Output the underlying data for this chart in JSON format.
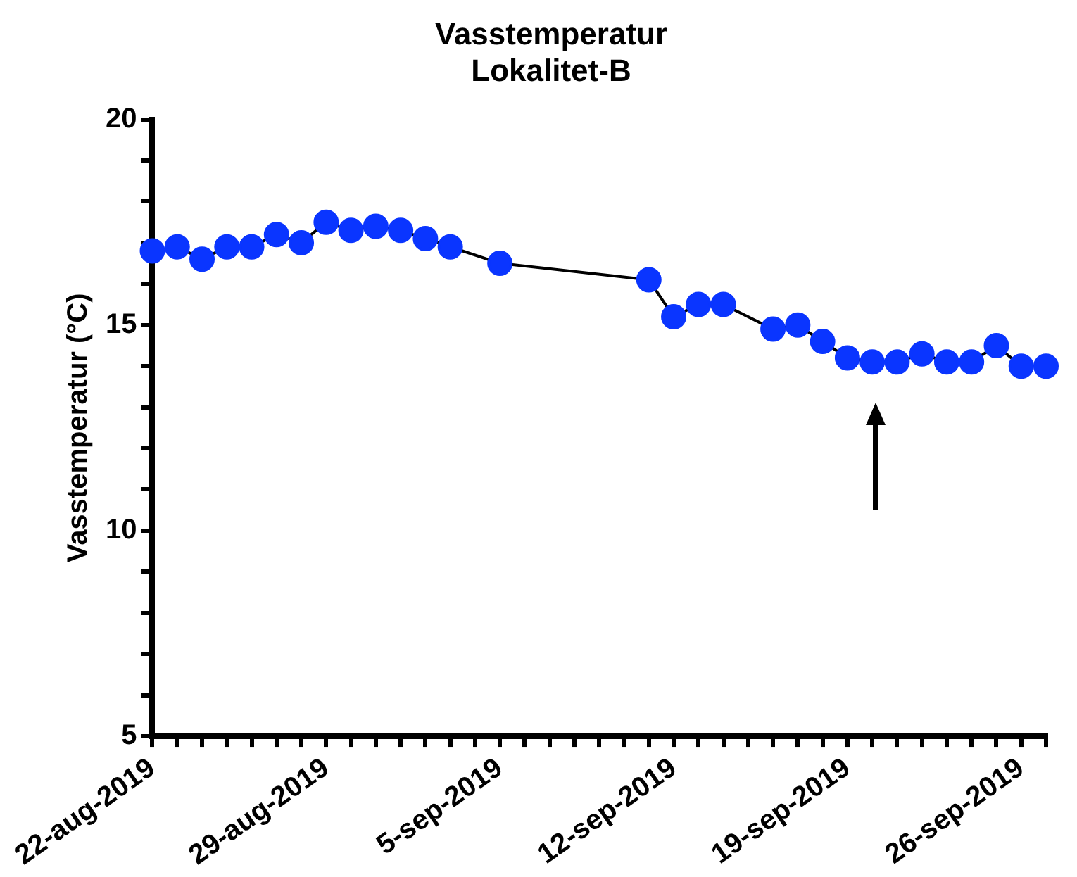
{
  "chart_data": {
    "type": "line",
    "title": "Vasstemperatur",
    "subtitle": "Lokalitet-B",
    "ylabel": "Vasstemperatur (°C)",
    "x": [
      "2019-08-22",
      "2019-08-23",
      "2019-08-24",
      "2019-08-25",
      "2019-08-26",
      "2019-08-27",
      "2019-08-28",
      "2019-08-29",
      "2019-08-30",
      "2019-08-31",
      "2019-09-01",
      "2019-09-02",
      "2019-09-03",
      "2019-09-05",
      "2019-09-11",
      "2019-09-12",
      "2019-09-13",
      "2019-09-14",
      "2019-09-16",
      "2019-09-17",
      "2019-09-18",
      "2019-09-19",
      "2019-09-20",
      "2019-09-21",
      "2019-09-22",
      "2019-09-23",
      "2019-09-24",
      "2019-09-25",
      "2019-09-26",
      "2019-09-27"
    ],
    "series": [
      {
        "color": "#0a35ff",
        "values": [
          16.8,
          16.9,
          16.6,
          16.9,
          16.9,
          17.2,
          17.0,
          17.5,
          17.3,
          17.4,
          17.3,
          17.1,
          16.9,
          16.5,
          16.1,
          15.2,
          15.5,
          15.5,
          14.9,
          15.0,
          14.6,
          14.2,
          14.1,
          14.1,
          14.3,
          14.1,
          14.1,
          14.5,
          14.0,
          14.0
        ]
      }
    ],
    "marker": "circle",
    "line_style": "solid",
    "grid": false,
    "legend": false,
    "xlim": [
      "2019-08-22",
      "2019-09-27"
    ],
    "xticks": [
      {
        "value": "2019-08-22",
        "label": "22-aug-2019"
      },
      {
        "value": "2019-08-23",
        "label": null
      },
      {
        "value": "2019-08-24",
        "label": null
      },
      {
        "value": "2019-08-25",
        "label": null
      },
      {
        "value": "2019-08-26",
        "label": null
      },
      {
        "value": "2019-08-27",
        "label": null
      },
      {
        "value": "2019-08-28",
        "label": null
      },
      {
        "value": "2019-08-29",
        "label": "29-aug-2019"
      },
      {
        "value": "2019-08-30",
        "label": null
      },
      {
        "value": "2019-08-31",
        "label": null
      },
      {
        "value": "2019-09-01",
        "label": null
      },
      {
        "value": "2019-09-02",
        "label": null
      },
      {
        "value": "2019-09-03",
        "label": null
      },
      {
        "value": "2019-09-04",
        "label": null
      },
      {
        "value": "2019-09-05",
        "label": "5-sep-2019"
      },
      {
        "value": "2019-09-06",
        "label": null
      },
      {
        "value": "2019-09-07",
        "label": null
      },
      {
        "value": "2019-09-08",
        "label": null
      },
      {
        "value": "2019-09-09",
        "label": null
      },
      {
        "value": "2019-09-10",
        "label": null
      },
      {
        "value": "2019-09-11",
        "label": null
      },
      {
        "value": "2019-09-12",
        "label": "12-sep-2019"
      },
      {
        "value": "2019-09-13",
        "label": null
      },
      {
        "value": "2019-09-14",
        "label": null
      },
      {
        "value": "2019-09-15",
        "label": null
      },
      {
        "value": "2019-09-16",
        "label": null
      },
      {
        "value": "2019-09-17",
        "label": null
      },
      {
        "value": "2019-09-18",
        "label": null
      },
      {
        "value": "2019-09-19",
        "label": "19-sep-2019"
      },
      {
        "value": "2019-09-20",
        "label": null
      },
      {
        "value": "2019-09-21",
        "label": null
      },
      {
        "value": "2019-09-22",
        "label": null
      },
      {
        "value": "2019-09-23",
        "label": null
      },
      {
        "value": "2019-09-24",
        "label": null
      },
      {
        "value": "2019-09-25",
        "label": null
      },
      {
        "value": "2019-09-26",
        "label": "26-sep-2019"
      },
      {
        "value": "2019-09-27",
        "label": null
      }
    ],
    "ylim": [
      5,
      20
    ],
    "yticks": [
      5,
      {
        "value": 6,
        "label": null
      },
      {
        "value": 7,
        "label": null
      },
      {
        "value": 8,
        "label": null
      },
      {
        "value": 9,
        "label": null
      },
      10,
      {
        "value": 11,
        "label": null
      },
      {
        "value": 12,
        "label": null
      },
      {
        "value": 13,
        "label": null
      },
      {
        "value": 14,
        "label": null
      },
      15,
      {
        "value": 16,
        "label": null
      },
      {
        "value": 17,
        "label": null
      },
      {
        "value": 18,
        "label": null
      },
      {
        "value": 19,
        "label": null
      },
      20
    ]
  }
}
